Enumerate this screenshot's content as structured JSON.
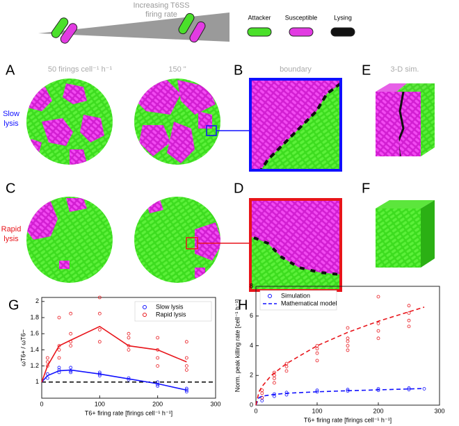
{
  "figure": {
    "schematic_label": [
      "Increasing T6SS",
      "firing rate"
    ],
    "cell_legend": [
      "Attacker",
      "Susceptible",
      "Lysing"
    ],
    "panels": {
      "A": "A",
      "B": "B",
      "C": "C",
      "D": "D",
      "E": "E",
      "F": "F"
    },
    "column_titles": [
      "50 firings cell⁻¹ h⁻¹",
      "150 \"",
      "boundary",
      "3-D sim."
    ],
    "row_labels": [
      [
        "Slow",
        "lysis"
      ],
      [
        "Rapid",
        "lysis"
      ]
    ]
  },
  "chart_data": [
    {
      "type": "line",
      "panel": "G",
      "x_label": "T6+ firing rate [firings cell⁻¹ h⁻¹]",
      "y_label": "ωT6+ / ωT6−",
      "xlim": [
        0,
        300
      ],
      "xticks": [
        0,
        100,
        200,
        300
      ],
      "ylim": [
        0.8,
        2.05
      ],
      "yticks": [
        1,
        1.2,
        1.4,
        1.6,
        1.8,
        2
      ],
      "hline": 1,
      "legend": "upper right",
      "series": [
        {
          "name": "Slow lysis",
          "color": "#1010ff",
          "style": "markers",
          "x": [
            10,
            10,
            30,
            30,
            30,
            50,
            50,
            50,
            100,
            100,
            100,
            150,
            150,
            200,
            200,
            200,
            250,
            250,
            250
          ],
          "values": [
            1.05,
            1.1,
            1.18,
            1.15,
            1.12,
            1.18,
            1.14,
            1.12,
            1.12,
            1.1,
            1.08,
            1.05,
            1.03,
            1,
            0.97,
            0.95,
            0.92,
            0.9,
            0.88
          ]
        },
        {
          "name": "Rapid lysis",
          "color": "#e8141a",
          "style": "markers",
          "x": [
            10,
            10,
            10,
            30,
            30,
            30,
            30,
            50,
            50,
            50,
            50,
            100,
            100,
            100,
            100,
            150,
            150,
            150,
            150,
            200,
            200,
            200,
            200,
            250,
            250,
            250,
            250
          ],
          "values": [
            1.2,
            1.25,
            1.3,
            1.8,
            1.45,
            1.4,
            1.3,
            1.85,
            1.6,
            1.5,
            1.45,
            2.05,
            1.85,
            1.65,
            1.5,
            1.6,
            1.55,
            1.45,
            1.4,
            1.55,
            1.4,
            1.3,
            1.2,
            1.5,
            1.3,
            1.2,
            1.15
          ]
        },
        {
          "color": "#1010ff",
          "style": "line",
          "x": [
            0,
            10,
            30,
            50,
            100,
            150,
            200,
            250
          ],
          "values": [
            1,
            1.08,
            1.14,
            1.15,
            1.1,
            1.04,
            0.98,
            0.9
          ]
        },
        {
          "color": "#e8141a",
          "style": "line",
          "x": [
            0,
            10,
            30,
            50,
            100,
            150,
            200,
            250
          ],
          "values": [
            1,
            1.2,
            1.45,
            1.52,
            1.69,
            1.45,
            1.4,
            1.25
          ]
        }
      ]
    },
    {
      "type": "line",
      "panel": "H",
      "x_label": "T6+ firing rate [firings cell⁻¹ h⁻¹]",
      "y_label": "Norm. peak killing rate [cell⁻¹ h⁻¹]",
      "xlim": [
        0,
        300
      ],
      "xticks": [
        0,
        100,
        200,
        300
      ],
      "ylim": [
        0,
        8
      ],
      "yticks": [
        0,
        2,
        4,
        6,
        8
      ],
      "legend": "upper left",
      "series": [
        {
          "name": "Simulation",
          "color": "#1010ff",
          "style": "markers",
          "x": [
            10,
            10,
            30,
            30,
            50,
            50,
            100,
            100,
            150,
            150,
            200,
            200,
            250,
            250,
            275
          ],
          "values": [
            0.3,
            0.5,
            0.6,
            0.75,
            0.7,
            0.85,
            0.9,
            1,
            0.95,
            1.05,
            1,
            1.1,
            1.05,
            1.15,
            1.1
          ]
        },
        {
          "color": "#e8141a",
          "style": "markers",
          "x": [
            10,
            10,
            10,
            30,
            30,
            30,
            30,
            50,
            50,
            50,
            100,
            100,
            100,
            100,
            150,
            150,
            150,
            150,
            150,
            200,
            200,
            200,
            200,
            250,
            250,
            250,
            250
          ],
          "values": [
            0.5,
            0.8,
            1,
            1.5,
            1.8,
            2,
            2.2,
            2.3,
            2.6,
            2.8,
            3,
            3.5,
            3.8,
            4,
            3.7,
            4,
            4.3,
            4.5,
            5.2,
            4.5,
            5,
            5.5,
            7.3,
            5.3,
            5.7,
            6.2,
            6.7
          ]
        },
        {
          "name": "Mathematical model",
          "color": "#1010ff",
          "style": "dashed",
          "x": [
            0,
            5,
            10,
            25,
            50,
            100,
            150,
            200,
            275
          ],
          "values": [
            0,
            0.5,
            0.6,
            0.7,
            0.8,
            0.9,
            0.97,
            1.03,
            1.12
          ]
        },
        {
          "color": "#e8141a",
          "style": "dashed",
          "x": [
            0,
            5,
            10,
            25,
            50,
            100,
            150,
            200,
            275
          ],
          "values": [
            0,
            0.9,
            1.26,
            2,
            2.8,
            4,
            4.9,
            5.65,
            6.6
          ]
        }
      ]
    }
  ]
}
